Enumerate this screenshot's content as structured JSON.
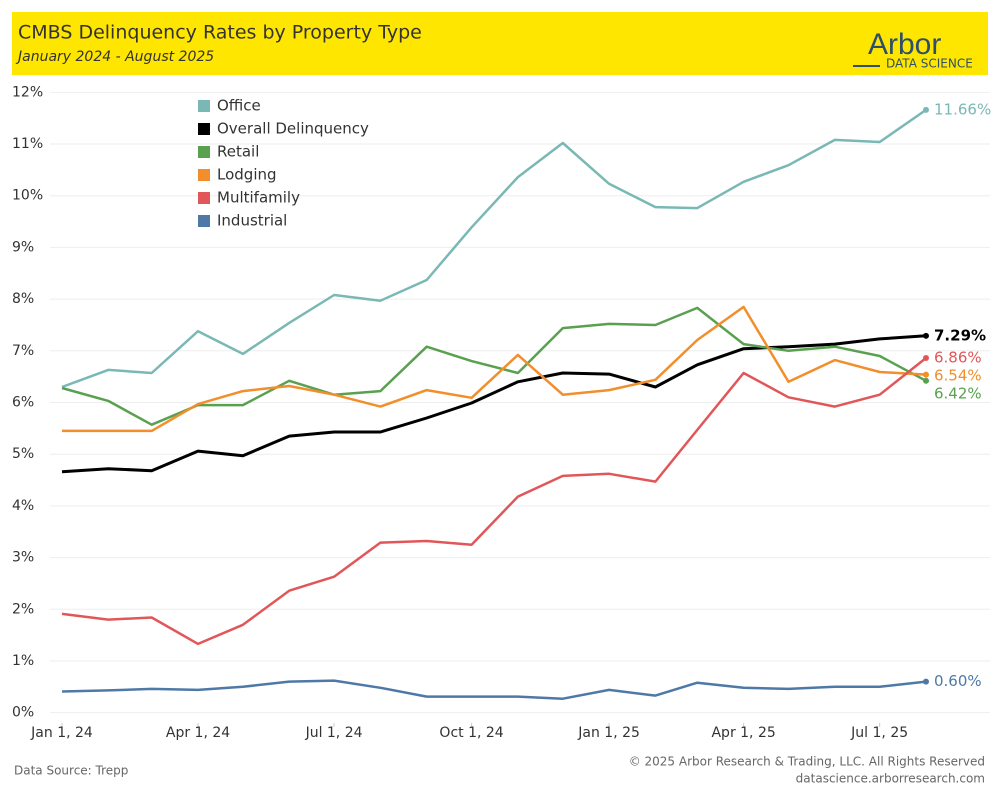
{
  "header": {
    "title": "CMBS Delinquency Rates by Property Type",
    "subtitle": "January 2024 - August 2025",
    "logo": "Arbor",
    "logo_tagline": "DATA SCIENCE"
  },
  "chart_data": {
    "type": "line",
    "x": [
      "2024-01-01",
      "2024-02-01",
      "2024-03-01",
      "2024-04-01",
      "2024-05-01",
      "2024-06-01",
      "2024-07-01",
      "2024-08-01",
      "2024-09-01",
      "2024-10-01",
      "2024-11-01",
      "2024-12-01",
      "2025-01-01",
      "2025-02-01",
      "2025-03-01",
      "2025-04-01",
      "2025-05-01",
      "2025-06-01",
      "2025-07-01",
      "2025-08-01"
    ],
    "xticks": [
      {
        "value": "2024-01-01",
        "label": "Jan 1, 24"
      },
      {
        "value": "2024-04-01",
        "label": "Apr 1, 24"
      },
      {
        "value": "2024-07-01",
        "label": "Jul 1, 24"
      },
      {
        "value": "2024-10-01",
        "label": "Oct 1, 24"
      },
      {
        "value": "2025-01-01",
        "label": "Jan 1, 25"
      },
      {
        "value": "2025-04-01",
        "label": "Apr 1, 25"
      },
      {
        "value": "2025-07-01",
        "label": "Jul 1, 25"
      }
    ],
    "ylim": [
      -0.2,
      12.2
    ],
    "yticks": [
      {
        "value": 0,
        "label": "0%"
      },
      {
        "value": 1,
        "label": "1%"
      },
      {
        "value": 2,
        "label": "2%"
      },
      {
        "value": 3,
        "label": "3%"
      },
      {
        "value": 4,
        "label": "4%"
      },
      {
        "value": 5,
        "label": "5%"
      },
      {
        "value": 6,
        "label": "6%"
      },
      {
        "value": 7,
        "label": "7%"
      },
      {
        "value": 8,
        "label": "8%"
      },
      {
        "value": 9,
        "label": "9%"
      },
      {
        "value": 10,
        "label": "10%"
      },
      {
        "value": 11,
        "label": "11%"
      },
      {
        "value": 12,
        "label": "12%"
      }
    ],
    "grid": true,
    "legend": "top-left",
    "series": [
      {
        "name": "Office",
        "color": "#7ab8b5",
        "values": [
          6.3,
          6.63,
          6.57,
          7.38,
          6.94,
          7.54,
          8.08,
          7.97,
          8.37,
          9.39,
          10.36,
          11.02,
          10.23,
          9.78,
          9.76,
          10.27,
          10.59,
          11.08,
          11.04,
          11.66
        ],
        "value_labels": [
          null,
          null,
          null,
          null,
          null,
          null,
          null,
          null,
          null,
          null,
          null,
          null,
          null,
          null,
          null,
          null,
          null,
          null,
          null,
          "11.66%"
        ]
      },
      {
        "name": "Overall Delinquency",
        "color": "#000000",
        "values": [
          4.66,
          4.72,
          4.68,
          5.06,
          4.97,
          5.35,
          5.43,
          5.43,
          5.7,
          5.99,
          6.4,
          6.57,
          6.55,
          6.3,
          6.73,
          7.04,
          7.08,
          7.13,
          7.23,
          7.29
        ],
        "value_labels": [
          null,
          null,
          null,
          null,
          null,
          null,
          null,
          null,
          null,
          null,
          null,
          null,
          null,
          null,
          null,
          null,
          null,
          null,
          null,
          "7.29%"
        ]
      },
      {
        "name": "Retail",
        "color": "#59a14f",
        "values": [
          6.28,
          6.03,
          5.57,
          5.95,
          5.95,
          6.42,
          6.15,
          6.22,
          7.08,
          6.8,
          6.57,
          7.44,
          7.52,
          7.5,
          7.83,
          7.13,
          7.0,
          7.08,
          6.9,
          6.42
        ],
        "value_labels": [
          null,
          null,
          null,
          null,
          null,
          null,
          null,
          null,
          null,
          null,
          null,
          null,
          null,
          null,
          null,
          null,
          null,
          null,
          null,
          "6.42%"
        ]
      },
      {
        "name": "Lodging",
        "color": "#f28e2b",
        "values": [
          5.45,
          5.45,
          5.45,
          5.97,
          6.22,
          6.32,
          6.15,
          5.92,
          6.24,
          6.09,
          6.92,
          6.15,
          6.24,
          6.44,
          7.21,
          7.85,
          6.4,
          6.82,
          6.59,
          6.54
        ],
        "value_labels": [
          null,
          null,
          null,
          null,
          null,
          null,
          null,
          null,
          null,
          null,
          null,
          null,
          null,
          null,
          null,
          null,
          null,
          null,
          null,
          "6.54%"
        ]
      },
      {
        "name": "Multifamily",
        "color": "#e15759",
        "values": [
          1.91,
          1.8,
          1.84,
          1.33,
          1.7,
          2.36,
          2.63,
          3.29,
          3.32,
          3.25,
          4.18,
          4.58,
          4.62,
          4.47,
          5.47,
          6.57,
          6.1,
          5.92,
          6.15,
          6.86
        ],
        "value_labels": [
          null,
          null,
          null,
          null,
          null,
          null,
          null,
          null,
          null,
          null,
          null,
          null,
          null,
          null,
          null,
          null,
          null,
          null,
          null,
          "6.86%"
        ]
      },
      {
        "name": "Industrial",
        "color": "#4e79a7",
        "values": [
          0.41,
          0.43,
          0.46,
          0.44,
          0.5,
          0.6,
          0.62,
          0.48,
          0.31,
          0.31,
          0.31,
          0.27,
          0.44,
          0.33,
          0.58,
          0.48,
          0.46,
          0.5,
          0.5,
          0.6
        ],
        "value_labels": [
          null,
          null,
          null,
          null,
          null,
          null,
          null,
          null,
          null,
          null,
          null,
          null,
          null,
          null,
          null,
          null,
          null,
          null,
          null,
          "0.60%"
        ]
      }
    ]
  },
  "footer": {
    "source": "Data Source: Trepp",
    "copyright": "© 2025 Arbor Research & Trading, LLC. All Rights Reserved",
    "url": "datascience.arborresearch.com"
  }
}
